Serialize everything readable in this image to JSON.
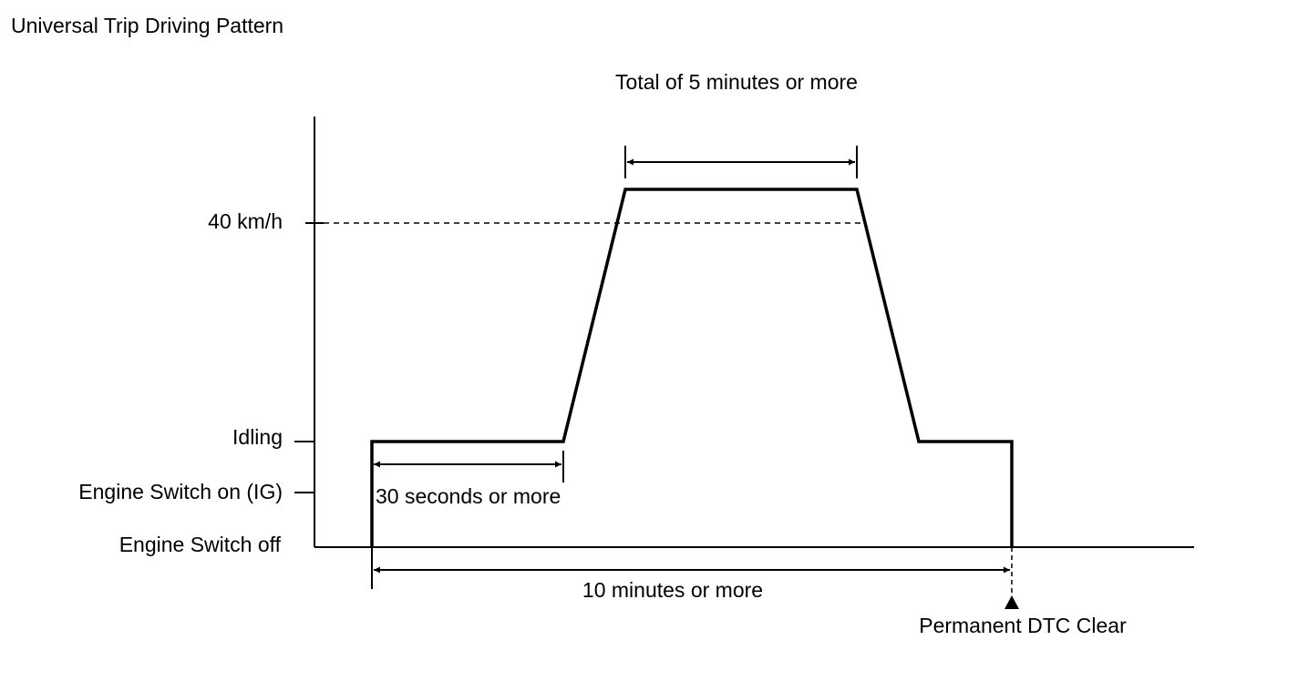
{
  "title": "Universal Trip Driving Pattern",
  "y_labels": [
    "40 km/h",
    "Idling",
    "Engine Switch on (IG)",
    "Engine Switch off"
  ],
  "annotations": {
    "top_duration": "Total of 5 minutes or more",
    "idle_duration": "30 seconds or more",
    "total_duration": "10 minutes or more",
    "end_marker": "Permanent DTC Clear"
  }
}
